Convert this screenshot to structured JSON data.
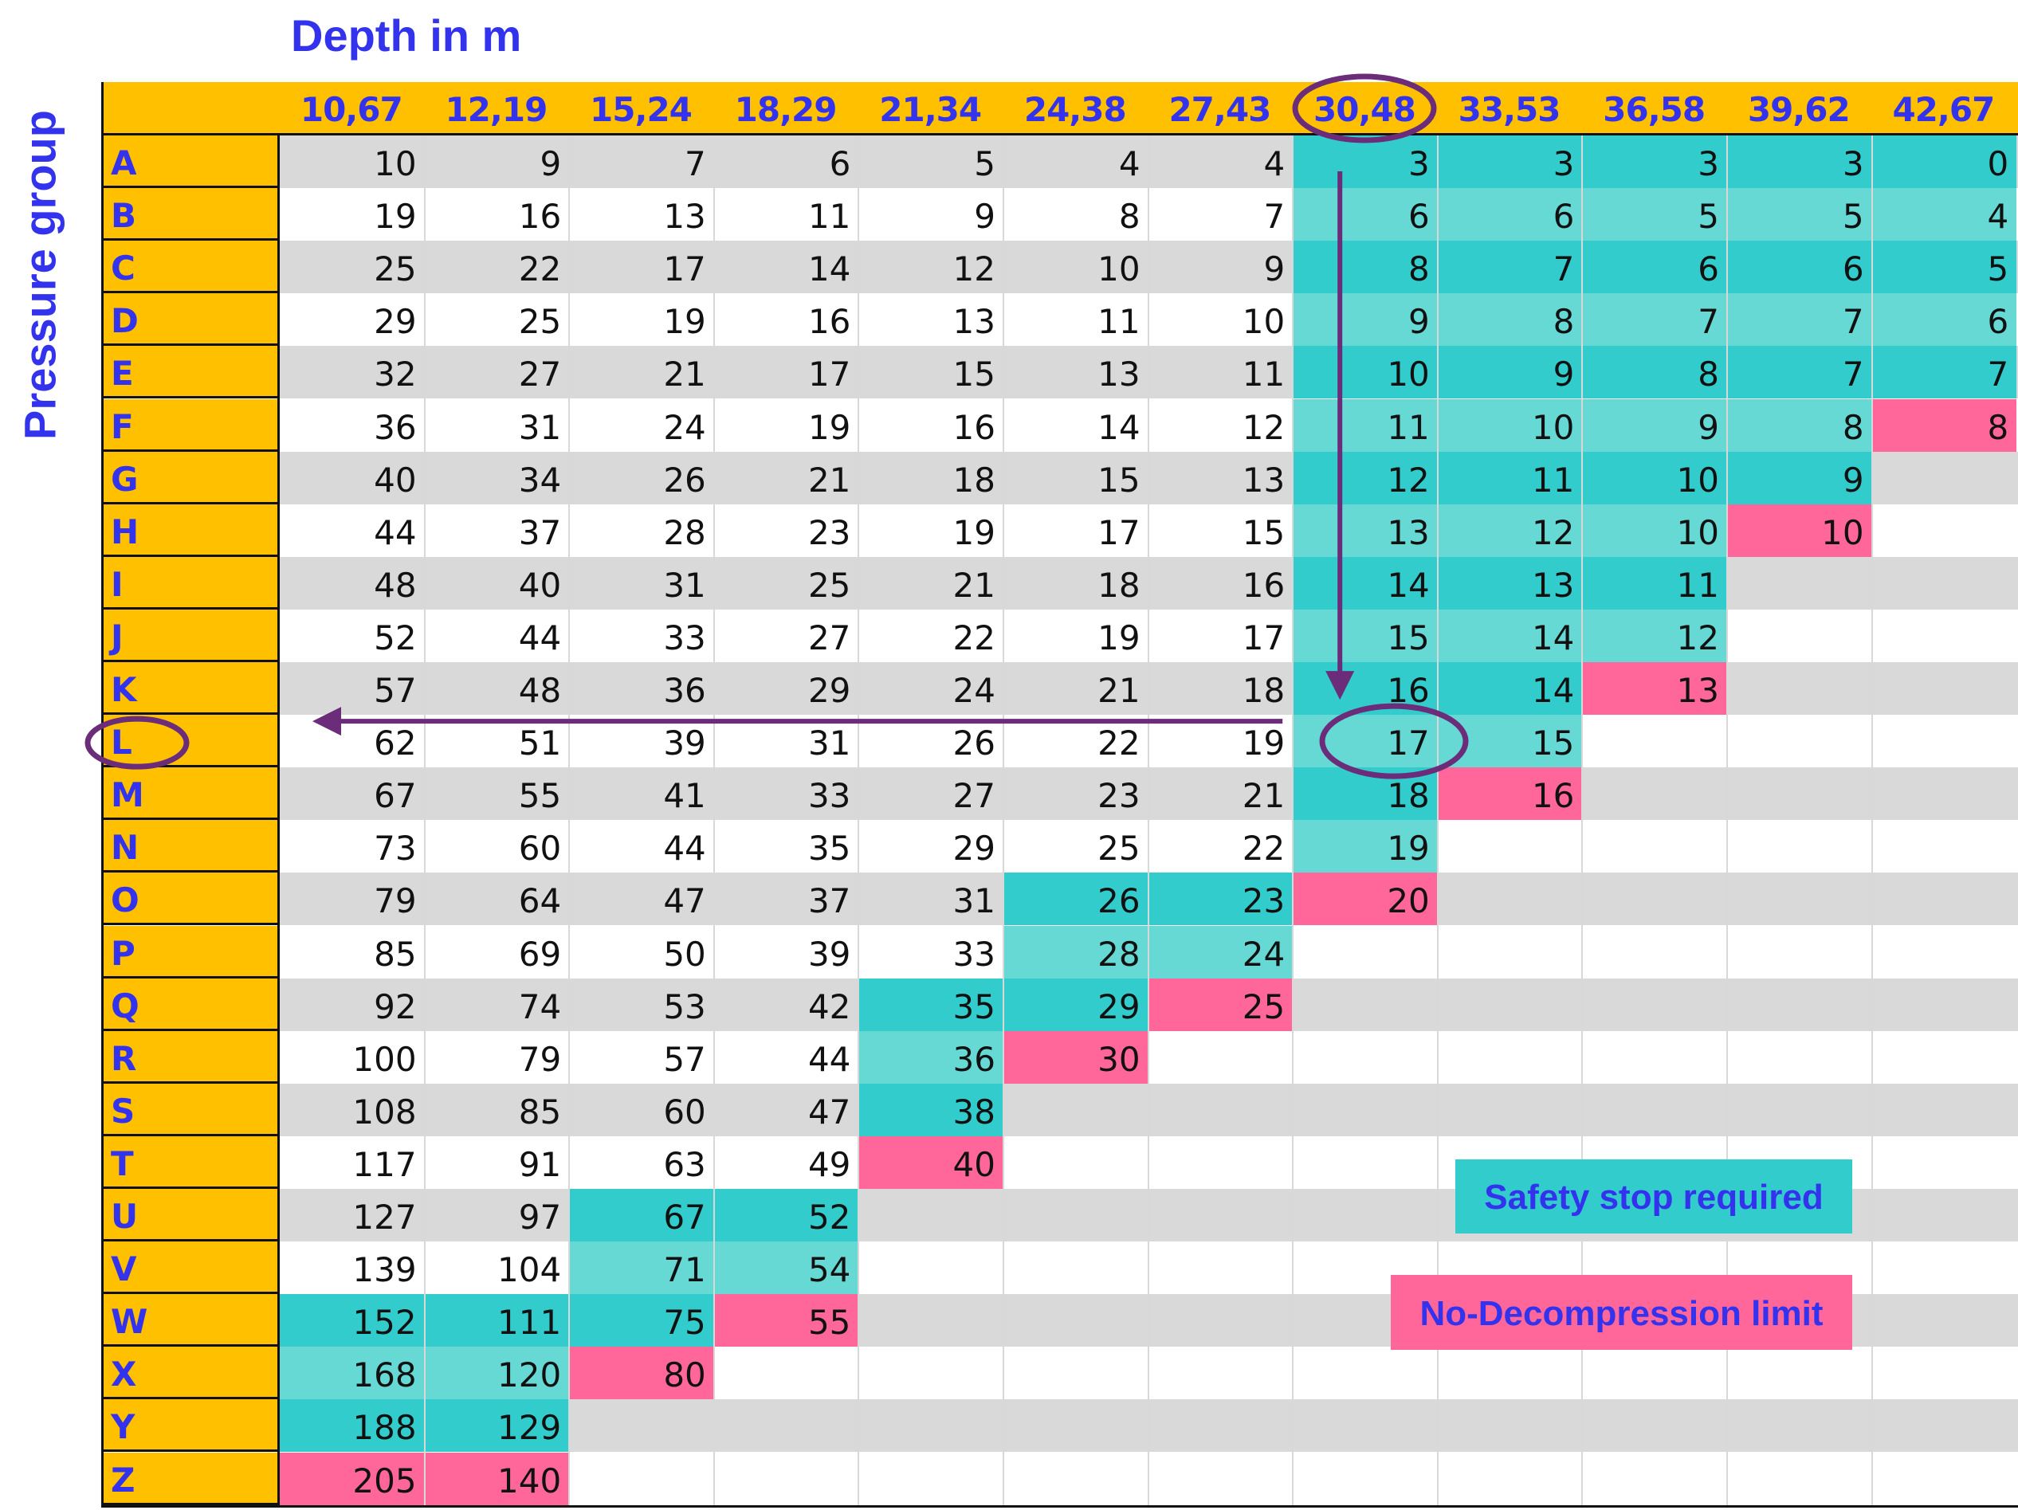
{
  "title": "Depth in m",
  "row_axis_label": "Pressure group",
  "colors": {
    "header": "#FFC000",
    "label_text": "#3333ee",
    "safety_dark": "#33CCCC",
    "safety_light": "#66D9D5",
    "ndl": "#FF6699",
    "band_gray": "#D9D9D9",
    "annotation": "#6B2C7A"
  },
  "legend": {
    "safety": "Safety stop required",
    "ndl": "No-Decompression limit"
  },
  "chart_data": {
    "type": "table",
    "title": "Depth in m",
    "row_label": "Pressure group",
    "columns": [
      "10,67",
      "12,19",
      "15,24",
      "18,29",
      "21,34",
      "24,38",
      "27,43",
      "30,48",
      "33,53",
      "36,58",
      "39,62",
      "42,67"
    ],
    "rows": [
      "A",
      "B",
      "C",
      "D",
      "E",
      "F",
      "G",
      "H",
      "I",
      "J",
      "K",
      "L",
      "M",
      "N",
      "O",
      "P",
      "Q",
      "R",
      "S",
      "T",
      "U",
      "V",
      "W",
      "X",
      "Y",
      "Z"
    ],
    "values": [
      [
        10,
        9,
        7,
        6,
        5,
        4,
        4,
        3,
        3,
        3,
        3,
        0
      ],
      [
        19,
        16,
        13,
        11,
        9,
        8,
        7,
        6,
        6,
        5,
        5,
        4
      ],
      [
        25,
        22,
        17,
        14,
        12,
        10,
        9,
        8,
        7,
        6,
        6,
        5
      ],
      [
        29,
        25,
        19,
        16,
        13,
        11,
        10,
        9,
        8,
        7,
        7,
        6
      ],
      [
        32,
        27,
        21,
        17,
        15,
        13,
        11,
        10,
        9,
        8,
        7,
        7
      ],
      [
        36,
        31,
        24,
        19,
        16,
        14,
        12,
        11,
        10,
        9,
        8,
        8
      ],
      [
        40,
        34,
        26,
        21,
        18,
        15,
        13,
        12,
        11,
        10,
        9,
        null
      ],
      [
        44,
        37,
        28,
        23,
        19,
        17,
        15,
        13,
        12,
        10,
        10,
        null
      ],
      [
        48,
        40,
        31,
        25,
        21,
        18,
        16,
        14,
        13,
        11,
        null,
        null
      ],
      [
        52,
        44,
        33,
        27,
        22,
        19,
        17,
        15,
        14,
        12,
        null,
        null
      ],
      [
        57,
        48,
        36,
        29,
        24,
        21,
        18,
        16,
        14,
        13,
        null,
        null
      ],
      [
        62,
        51,
        39,
        31,
        26,
        22,
        19,
        17,
        15,
        null,
        null,
        null
      ],
      [
        67,
        55,
        41,
        33,
        27,
        23,
        21,
        18,
        16,
        null,
        null,
        null
      ],
      [
        73,
        60,
        44,
        35,
        29,
        25,
        22,
        19,
        null,
        null,
        null,
        null
      ],
      [
        79,
        64,
        47,
        37,
        31,
        26,
        23,
        20,
        null,
        null,
        null,
        null
      ],
      [
        85,
        69,
        50,
        39,
        33,
        28,
        24,
        null,
        null,
        null,
        null,
        null
      ],
      [
        92,
        74,
        53,
        42,
        35,
        29,
        25,
        null,
        null,
        null,
        null,
        null
      ],
      [
        100,
        79,
        57,
        44,
        36,
        30,
        null,
        null,
        null,
        null,
        null,
        null
      ],
      [
        108,
        85,
        60,
        47,
        38,
        null,
        null,
        null,
        null,
        null,
        null,
        null
      ],
      [
        117,
        91,
        63,
        49,
        40,
        null,
        null,
        null,
        null,
        null,
        null,
        null
      ],
      [
        127,
        97,
        67,
        52,
        null,
        null,
        null,
        null,
        null,
        null,
        null,
        null
      ],
      [
        139,
        104,
        71,
        54,
        null,
        null,
        null,
        null,
        null,
        null,
        null,
        null
      ],
      [
        152,
        111,
        75,
        55,
        null,
        null,
        null,
        null,
        null,
        null,
        null,
        null
      ],
      [
        168,
        120,
        80,
        null,
        null,
        null,
        null,
        null,
        null,
        null,
        null,
        null
      ],
      [
        188,
        129,
        null,
        null,
        null,
        null,
        null,
        null,
        null,
        null,
        null,
        null
      ],
      [
        205,
        140,
        null,
        null,
        null,
        null,
        null,
        null,
        null,
        null,
        null,
        null
      ]
    ],
    "cell_status": [
      [
        "n",
        "n",
        "n",
        "n",
        "n",
        "n",
        "n",
        "s",
        "s",
        "s",
        "s",
        "s"
      ],
      [
        "n",
        "n",
        "n",
        "n",
        "n",
        "n",
        "n",
        "s",
        "s",
        "s",
        "s",
        "s"
      ],
      [
        "n",
        "n",
        "n",
        "n",
        "n",
        "n",
        "n",
        "s",
        "s",
        "s",
        "s",
        "s"
      ],
      [
        "n",
        "n",
        "n",
        "n",
        "n",
        "n",
        "n",
        "s",
        "s",
        "s",
        "s",
        "s"
      ],
      [
        "n",
        "n",
        "n",
        "n",
        "n",
        "n",
        "n",
        "s",
        "s",
        "s",
        "s",
        "s"
      ],
      [
        "n",
        "n",
        "n",
        "n",
        "n",
        "n",
        "n",
        "s",
        "s",
        "s",
        "s",
        "d"
      ],
      [
        "n",
        "n",
        "n",
        "n",
        "n",
        "n",
        "n",
        "s",
        "s",
        "s",
        "s",
        "e"
      ],
      [
        "n",
        "n",
        "n",
        "n",
        "n",
        "n",
        "n",
        "s",
        "s",
        "s",
        "d",
        "e"
      ],
      [
        "n",
        "n",
        "n",
        "n",
        "n",
        "n",
        "n",
        "s",
        "s",
        "s",
        "e",
        "e"
      ],
      [
        "n",
        "n",
        "n",
        "n",
        "n",
        "n",
        "n",
        "s",
        "s",
        "s",
        "e",
        "e"
      ],
      [
        "n",
        "n",
        "n",
        "n",
        "n",
        "n",
        "n",
        "s",
        "s",
        "d",
        "e",
        "e"
      ],
      [
        "n",
        "n",
        "n",
        "n",
        "n",
        "n",
        "n",
        "s",
        "s",
        "e",
        "e",
        "e"
      ],
      [
        "n",
        "n",
        "n",
        "n",
        "n",
        "n",
        "n",
        "s",
        "d",
        "e",
        "e",
        "e"
      ],
      [
        "n",
        "n",
        "n",
        "n",
        "n",
        "n",
        "n",
        "s",
        "e",
        "e",
        "e",
        "e"
      ],
      [
        "n",
        "n",
        "n",
        "n",
        "n",
        "s",
        "s",
        "d",
        "e",
        "e",
        "e",
        "e"
      ],
      [
        "n",
        "n",
        "n",
        "n",
        "n",
        "s",
        "s",
        "e",
        "e",
        "e",
        "e",
        "e"
      ],
      [
        "n",
        "n",
        "n",
        "n",
        "s",
        "s",
        "d",
        "e",
        "e",
        "e",
        "e",
        "e"
      ],
      [
        "n",
        "n",
        "n",
        "n",
        "s",
        "d",
        "e",
        "e",
        "e",
        "e",
        "e",
        "e"
      ],
      [
        "n",
        "n",
        "n",
        "n",
        "s",
        "e",
        "e",
        "e",
        "e",
        "e",
        "e",
        "e"
      ],
      [
        "n",
        "n",
        "n",
        "n",
        "d",
        "e",
        "e",
        "e",
        "e",
        "e",
        "e",
        "e"
      ],
      [
        "n",
        "n",
        "s",
        "s",
        "e",
        "e",
        "e",
        "e",
        "e",
        "e",
        "e",
        "e"
      ],
      [
        "n",
        "n",
        "s",
        "s",
        "e",
        "e",
        "e",
        "e",
        "e",
        "e",
        "e",
        "e"
      ],
      [
        "s",
        "s",
        "s",
        "d",
        "e",
        "e",
        "e",
        "e",
        "e",
        "e",
        "e",
        "e"
      ],
      [
        "s",
        "s",
        "d",
        "e",
        "e",
        "e",
        "e",
        "e",
        "e",
        "e",
        "e",
        "e"
      ],
      [
        "s",
        "s",
        "e",
        "e",
        "e",
        "e",
        "e",
        "e",
        "e",
        "e",
        "e",
        "e"
      ],
      [
        "d",
        "d",
        "e",
        "e",
        "e",
        "e",
        "e",
        "e",
        "e",
        "e",
        "e",
        "e"
      ]
    ],
    "status_legend": {
      "s": "Safety stop required",
      "d": "No-Decompression limit"
    },
    "highlight": {
      "column": "30,48",
      "row": "L",
      "value": 17
    }
  }
}
